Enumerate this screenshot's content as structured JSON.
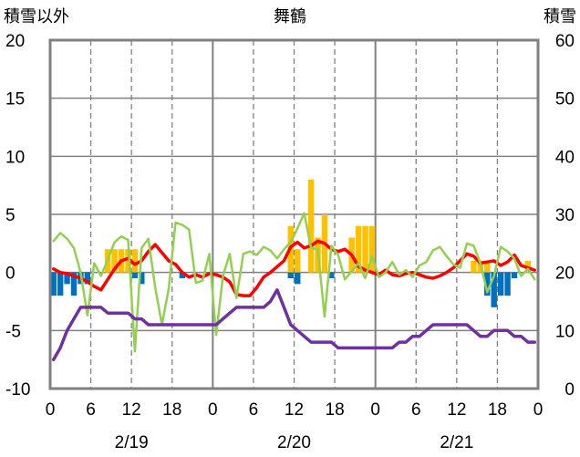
{
  "chart_data": {
    "type": "bar+line",
    "title": "舞鶴",
    "ylabel_left": "積雪以外",
    "ylabel_right": "積雪",
    "ylim_left": [
      -10,
      20
    ],
    "ylim_right": [
      0,
      60
    ],
    "yticks_left": [
      "20",
      "15",
      "10",
      "5",
      "0",
      "-5",
      "-10"
    ],
    "yticks_right": [
      "60",
      "50",
      "40",
      "30",
      "20",
      "10",
      "0"
    ],
    "xtick_labels": [
      "0",
      "6",
      "12",
      "18",
      "0",
      "6",
      "12",
      "18",
      "0",
      "6",
      "12",
      "18",
      "0"
    ],
    "date_labels": [
      "2/19",
      "2/20",
      "2/21"
    ],
    "x_hours": [
      0,
      1,
      2,
      3,
      4,
      5,
      6,
      7,
      8,
      9,
      10,
      11,
      12,
      13,
      14,
      15,
      16,
      17,
      18,
      19,
      20,
      21,
      22,
      23,
      24,
      25,
      26,
      27,
      28,
      29,
      30,
      31,
      32,
      33,
      34,
      35,
      36,
      37,
      38,
      39,
      40,
      41,
      42,
      43,
      44,
      45,
      46,
      47,
      48,
      49,
      50,
      51,
      52,
      53,
      54,
      55,
      56,
      57,
      58,
      59,
      60,
      61,
      62,
      63,
      64,
      65,
      66,
      67,
      68,
      69,
      70,
      71
    ],
    "grid": "dashed vertical at 6,12,18 h; solid vertical at day boundaries; horizontal at each 5",
    "colors": {
      "snowfall_bar": "#FFC000",
      "snow_change_neg_bar": "#0070C0",
      "temperature_line": "#FF0000",
      "wind_line": "#92D050",
      "snow_depth_line": "#7030A0",
      "frame": "#808080",
      "grid": "#808080"
    },
    "series": [
      {
        "type": "bar",
        "axis": "left",
        "color": "#FFC000",
        "values": [
          0,
          0,
          0,
          0,
          0,
          0,
          0,
          0,
          2,
          2,
          2,
          2,
          2,
          0,
          0,
          0,
          0,
          0,
          0,
          0,
          0,
          0,
          0,
          0,
          0,
          0,
          0,
          0,
          0,
          0,
          0,
          0,
          0,
          0,
          0,
          4,
          2,
          0,
          8,
          3,
          5,
          0,
          0,
          0,
          3,
          4,
          4,
          4,
          0,
          0,
          0,
          0,
          0,
          0,
          0,
          0,
          0,
          0,
          0,
          0,
          0,
          0,
          1,
          1,
          1,
          0,
          0,
          0,
          0,
          0,
          1,
          0
        ]
      },
      {
        "type": "bar",
        "axis": "left",
        "color": "#0070C0",
        "values": [
          -2,
          -2,
          -1,
          -2,
          -1,
          -1,
          0,
          0,
          0,
          0,
          0,
          0,
          -0.5,
          -1,
          0,
          0,
          0,
          0,
          0,
          -0.5,
          0,
          0,
          0,
          0,
          0,
          0,
          0,
          0,
          0,
          0,
          0,
          0,
          0,
          0,
          0,
          -0.5,
          -1,
          0,
          0,
          0,
          0,
          -0.5,
          0,
          0,
          0,
          0,
          0,
          0,
          0,
          0,
          0,
          0,
          0,
          0,
          0,
          0,
          0,
          0,
          0,
          0,
          0,
          0,
          0,
          0,
          -2,
          -3,
          -2,
          -2,
          -0.5,
          0,
          0,
          0
        ]
      },
      {
        "type": "line",
        "axis": "left",
        "color": "#FF0000",
        "values": [
          0.3,
          0,
          -0.1,
          -0.3,
          -0.5,
          -0.8,
          -1.2,
          -1.5,
          -0.6,
          0.3,
          1,
          1.2,
          0.7,
          1,
          1.8,
          2.4,
          1.7,
          1,
          0.7,
          0,
          -0.4,
          -0.2,
          -0.4,
          -0.1,
          -0.2,
          -0.4,
          -0.8,
          -1.9,
          -2,
          -2,
          -1.3,
          -0.4,
          0,
          0.5,
          1,
          2.2,
          2.6,
          2.1,
          2.3,
          2.7,
          2.5,
          2,
          1.8,
          2,
          1.5,
          0.5,
          0.2,
          0,
          -0.2,
          0.2,
          -0.2,
          -0.3,
          -0.1,
          0,
          -0.2,
          -0.4,
          -0.5,
          -0.3,
          0,
          0.4,
          1,
          1.6,
          1.4,
          0.8,
          0.9,
          1,
          0.6,
          0.9,
          1.5,
          0.6,
          0.4,
          0.2
        ]
      },
      {
        "type": "line",
        "axis": "left",
        "color": "#92D050",
        "values": [
          2.7,
          3.4,
          2.9,
          2.1,
          0,
          -3.7,
          0.8,
          -0.3,
          1.1,
          2.6,
          3.1,
          2.8,
          -6.8,
          2.1,
          2.9,
          -1.3,
          -4.5,
          -1.4,
          4.3,
          4.1,
          3.7,
          -0.9,
          -0.7,
          1.6,
          -5.4,
          -0.3,
          1.6,
          -2.2,
          1.6,
          1.8,
          1.5,
          2.2,
          1.9,
          1.2,
          2,
          2.6,
          3.8,
          5.1,
          2.1,
          2,
          -3.8,
          2.3,
          1.5,
          -0.6,
          0.1,
          0.8,
          -0.5,
          1.4,
          -0.4,
          0,
          0.9,
          -0.2,
          0.2,
          -0.4,
          0.6,
          0.9,
          1.9,
          2.2,
          1.4,
          0.7,
          0.4,
          2.5,
          2.3,
          0.8,
          -1.7,
          -0.3,
          2.2,
          1.8,
          1.2,
          -0.3,
          0.3,
          -0.6
        ]
      },
      {
        "type": "line",
        "axis": "right",
        "color": "#7030A0",
        "values": [
          5,
          7,
          10,
          12,
          14,
          14,
          14,
          14,
          13,
          13,
          13,
          13,
          12,
          12,
          11,
          11,
          11,
          11,
          11,
          11,
          11,
          11,
          11,
          11,
          11,
          12,
          13,
          14,
          14,
          14,
          14,
          14,
          15,
          17,
          14,
          11,
          10,
          9,
          8,
          8,
          8,
          8,
          7,
          7,
          7,
          7,
          7,
          7,
          7,
          7,
          7,
          8,
          8,
          9,
          9,
          10,
          11,
          11,
          11,
          11,
          11,
          11,
          10,
          9,
          9,
          10,
          10,
          10,
          9,
          9,
          8,
          8
        ]
      }
    ]
  }
}
